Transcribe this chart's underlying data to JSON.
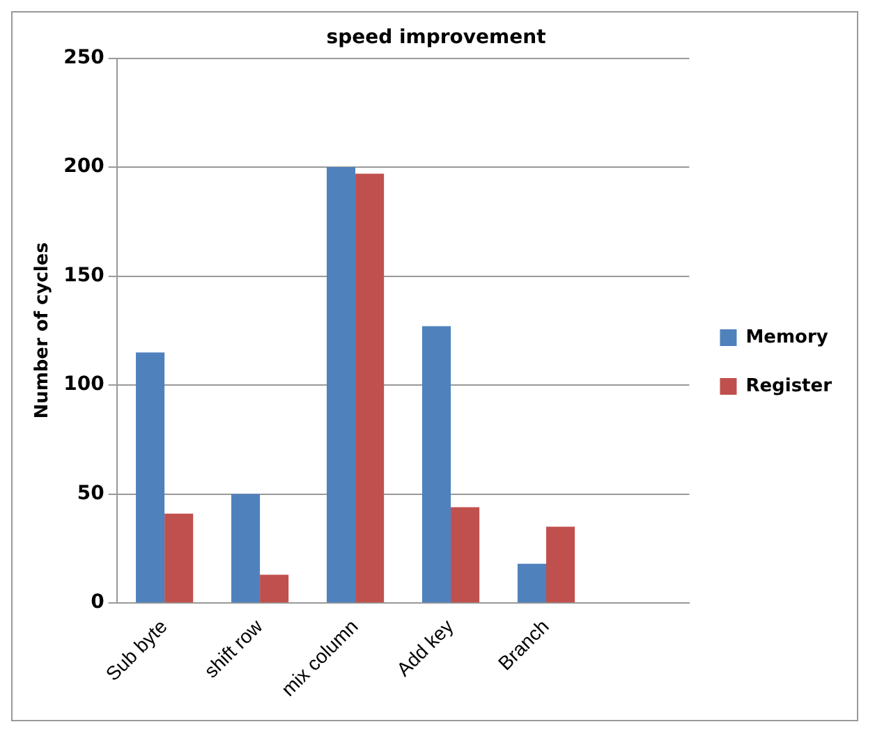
{
  "chart_data": {
    "type": "bar",
    "title": "speed improvement",
    "ylabel": "Number of cycles",
    "categories": [
      "Sub byte",
      "shift row",
      "mix column",
      "Add key",
      "Branch",
      null
    ],
    "series": [
      {
        "name": "Memory",
        "color": "#4f81bd",
        "values": [
          115,
          50,
          200,
          127,
          18,
          null
        ]
      },
      {
        "name": "Register",
        "color": "#c0504d",
        "values": [
          41,
          13,
          197,
          44,
          35,
          null
        ]
      }
    ],
    "ylim": [
      0,
      250
    ],
    "yticks": [
      0,
      50,
      100,
      150,
      200,
      250
    ],
    "grid": "y",
    "legend": "right"
  }
}
